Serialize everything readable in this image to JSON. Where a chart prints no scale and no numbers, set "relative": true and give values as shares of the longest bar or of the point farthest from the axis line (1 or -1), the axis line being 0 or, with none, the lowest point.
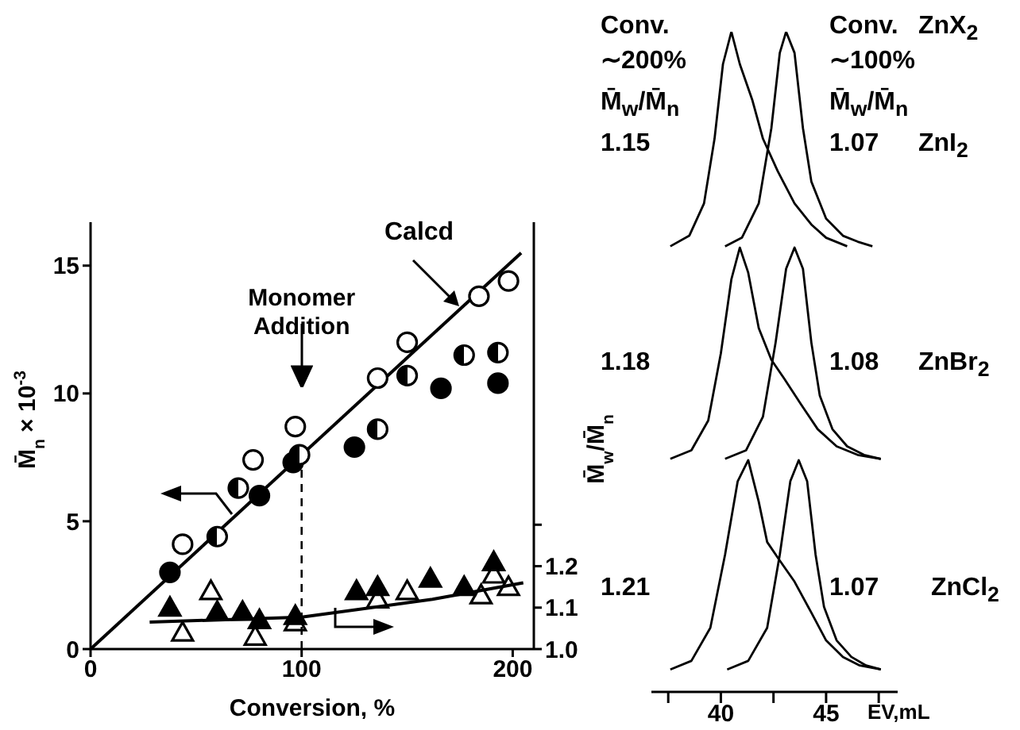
{
  "chart_data": [
    {
      "type": "scatter",
      "xlabel": "Conversion, %",
      "ylabel": "M̄$_{n}$ × 10$^{-3}$",
      "y2label": "M̄$_{w}$/M̄$_{n}$",
      "xlim": [
        0,
        210
      ],
      "xticks": [
        0,
        100,
        200
      ],
      "ylim": [
        0,
        16.7
      ],
      "yticks": [
        0,
        5,
        10,
        15
      ],
      "y2lim": [
        1.0,
        2.03
      ],
      "y2ticks": [
        {
          "value": 1,
          "label": "1.0"
        },
        {
          "value": 1.1,
          "label": "1.1"
        },
        {
          "value": 1.2,
          "label": "1.2"
        },
        {
          "value": 1.3,
          "label": null
        }
      ],
      "marker": "circle",
      "annotations": [
        "Calcd"
      ],
      "ref_lines": [
        {
          "axis": "x",
          "value": 100,
          "label": "Monomer Addition",
          "line_style": "dashed"
        }
      ],
      "series": [
        {
          "color": "#000000",
          "marker": "circle-open",
          "x": [
            43.6,
            77,
            97,
            136,
            150,
            184,
            198
          ],
          "values": [
            4.1,
            7.4,
            8.7,
            10.6,
            12.0,
            13.8,
            14.4
          ]
        },
        {
          "color": "#000000",
          "x": [
            37.6,
            80,
            96,
            125,
            166,
            193
          ],
          "values": [
            3.0,
            6.0,
            7.3,
            7.9,
            10.2,
            10.4
          ]
        },
        {
          "color": "#000000",
          "marker": "circle-half",
          "x": [
            60,
            70,
            99,
            136,
            150,
            177,
            193
          ],
          "values": [
            4.4,
            6.3,
            7.6,
            8.6,
            10.7,
            11.5,
            11.6
          ]
        },
        {
          "type": "line",
          "marker": "none",
          "color": "#000000",
          "x": [
            0,
            204
          ],
          "values": [
            0,
            15.5
          ]
        },
        {
          "axis": "y2",
          "marker": "triangle",
          "color": "#000000",
          "x": [
            37.6,
            60,
            72,
            80,
            97,
            126,
            136,
            161,
            177,
            191
          ],
          "values": [
            1.1,
            1.09,
            1.09,
            1.07,
            1.08,
            1.14,
            1.15,
            1.17,
            1.15,
            1.21
          ]
        },
        {
          "axis": "y2",
          "marker": "triangle-open",
          "color": "#000000",
          "x": [
            43.6,
            57,
            78,
            97,
            136,
            150,
            185,
            191,
            198
          ],
          "values": [
            1.04,
            1.14,
            1.03,
            1.065,
            1.12,
            1.14,
            1.13,
            1.18,
            1.15
          ]
        },
        {
          "axis": "y2",
          "type": "line",
          "marker": "none",
          "color": "#000000",
          "x": [
            28,
            100,
            162,
            205
          ],
          "values": [
            1.065,
            1.077,
            1.12,
            1.16
          ]
        }
      ]
    },
    {
      "type": "line",
      "relative": true,
      "tick_labels": "x",
      "xlabel": "EV,mL",
      "xlim": [
        36.7,
        48.4
      ],
      "xticks": [
        {
          "value": 37.5,
          "label": null
        },
        40,
        {
          "value": 42.5,
          "label": null
        },
        45,
        {
          "value": 47.5,
          "label": null
        }
      ],
      "annotations": [
        "Conv.",
        "∼200%",
        "M̄$_{w}$/M̄$_{n}$",
        "1.15",
        "Conv.",
        "∼100%",
        "M̄$_{w}$/M̄$_{n}$",
        "1.07",
        "ZnX$_{2}$",
        "ZnI$_{2}$",
        "1.18",
        "1.08",
        "ZnBr$_{2}$",
        "1.21",
        "1.07",
        "ZnCl$_{2}$"
      ],
      "series": [
        {
          "color": "#000000",
          "x": [
            37.6,
            38.5,
            39.2,
            39.7,
            40.1,
            40.5,
            40.9,
            41.5,
            42.0,
            42.7,
            43.5,
            44.3,
            45.0,
            46.0
          ],
          "values": [
            0.675,
            0.691,
            0.74,
            0.838,
            0.951,
            1,
            0.951,
            0.896,
            0.838,
            0.789,
            0.74,
            0.708,
            0.688,
            0.675
          ]
        },
        {
          "color": "#000000",
          "x": [
            40.2,
            41.0,
            41.8,
            42.4,
            42.8,
            43.1,
            43.5,
            43.9,
            44.3,
            45.0,
            45.8,
            46.5,
            47.2
          ],
          "values": [
            0.675,
            0.688,
            0.74,
            0.854,
            0.968,
            1,
            0.968,
            0.854,
            0.773,
            0.717,
            0.691,
            0.682,
            0.675
          ]
        },
        {
          "color": "#000000",
          "x": [
            37.6,
            38.6,
            39.4,
            40.0,
            40.5,
            40.9,
            41.3,
            41.8,
            42.4,
            43.0,
            43.8,
            44.6,
            45.5,
            46.5,
            47.6
          ],
          "values": [
            0.353,
            0.366,
            0.411,
            0.513,
            0.625,
            0.673,
            0.635,
            0.551,
            0.503,
            0.475,
            0.436,
            0.398,
            0.372,
            0.359,
            0.353
          ]
        },
        {
          "color": "#000000",
          "x": [
            40.2,
            41.2,
            42.0,
            42.6,
            43.1,
            43.5,
            43.9,
            44.3,
            44.7,
            45.3,
            46.0,
            46.8,
            47.6
          ],
          "values": [
            0.353,
            0.366,
            0.417,
            0.529,
            0.641,
            0.673,
            0.641,
            0.529,
            0.449,
            0.398,
            0.372,
            0.359,
            0.353
          ]
        },
        {
          "color": "#000000",
          "x": [
            37.6,
            38.6,
            39.5,
            40.2,
            40.8,
            41.3,
            41.8,
            42.2,
            42.8,
            43.5,
            44.3,
            45.0,
            45.8,
            46.6,
            47.6
          ],
          "values": [
            0.034,
            0.047,
            0.097,
            0.208,
            0.319,
            0.351,
            0.288,
            0.227,
            0.199,
            0.167,
            0.12,
            0.078,
            0.053,
            0.04,
            0.034
          ]
        },
        {
          "color": "#000000",
          "x": [
            40.3,
            41.3,
            42.2,
            42.8,
            43.3,
            43.7,
            44.1,
            44.5,
            44.9,
            45.5,
            46.2,
            46.9,
            47.6
          ],
          "values": [
            0.034,
            0.047,
            0.097,
            0.208,
            0.319,
            0.351,
            0.319,
            0.208,
            0.129,
            0.078,
            0.053,
            0.04,
            0.034
          ]
        }
      ]
    }
  ]
}
